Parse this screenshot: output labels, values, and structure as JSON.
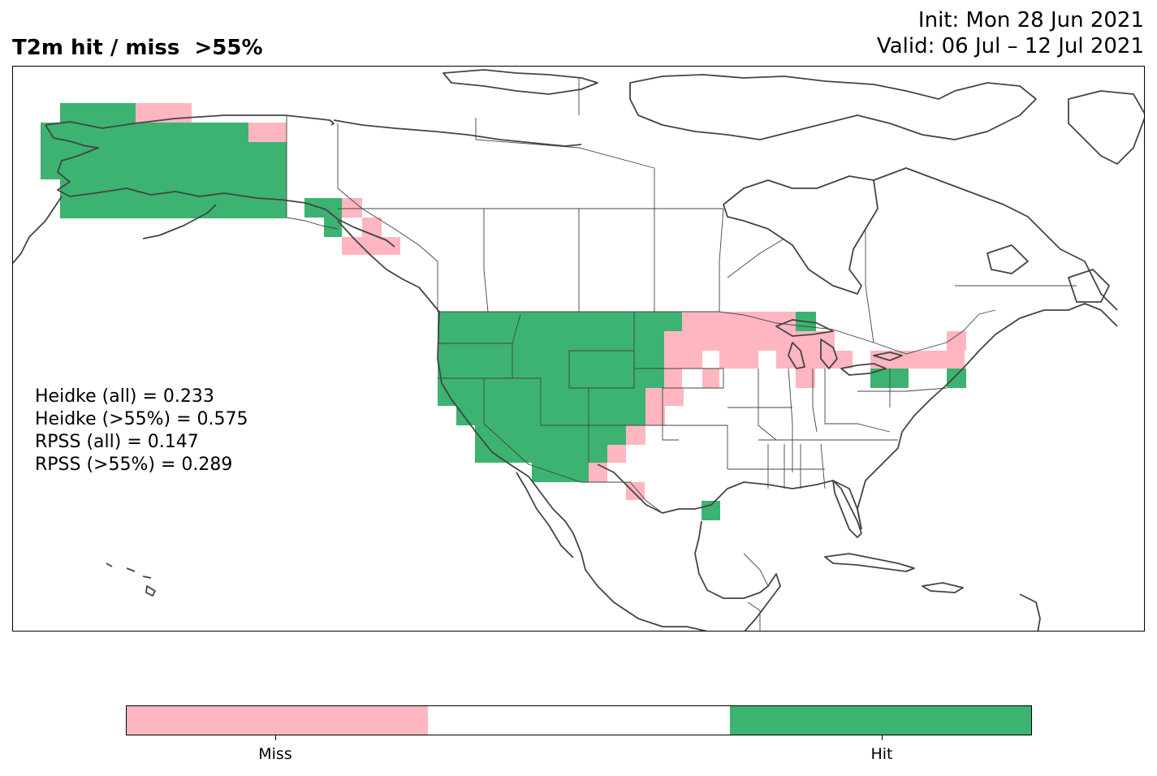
{
  "header": {
    "title": "T2m hit / miss  >55%",
    "init": "Init: Mon 28 Jun 2021",
    "valid": "Valid: 06 Jul – 12 Jul 2021"
  },
  "scores": {
    "heidke_all": "Heidke (all) = 0.233",
    "heidke_55": "Heidke (>55%) = 0.575",
    "rpss_all": "RPSS (all) = 0.147",
    "rpss_55": "RPSS (>55%) = 0.289"
  },
  "colorbar": {
    "colors": [
      "#ffb6c1",
      "#ffffff",
      "#3cb371"
    ],
    "labels": [
      "Miss",
      "Hit"
    ]
  },
  "map": {
    "region": "North America",
    "hit_color": "#3cb371",
    "miss_color": "#ffb6c1",
    "coastline_color": "#444444"
  }
}
